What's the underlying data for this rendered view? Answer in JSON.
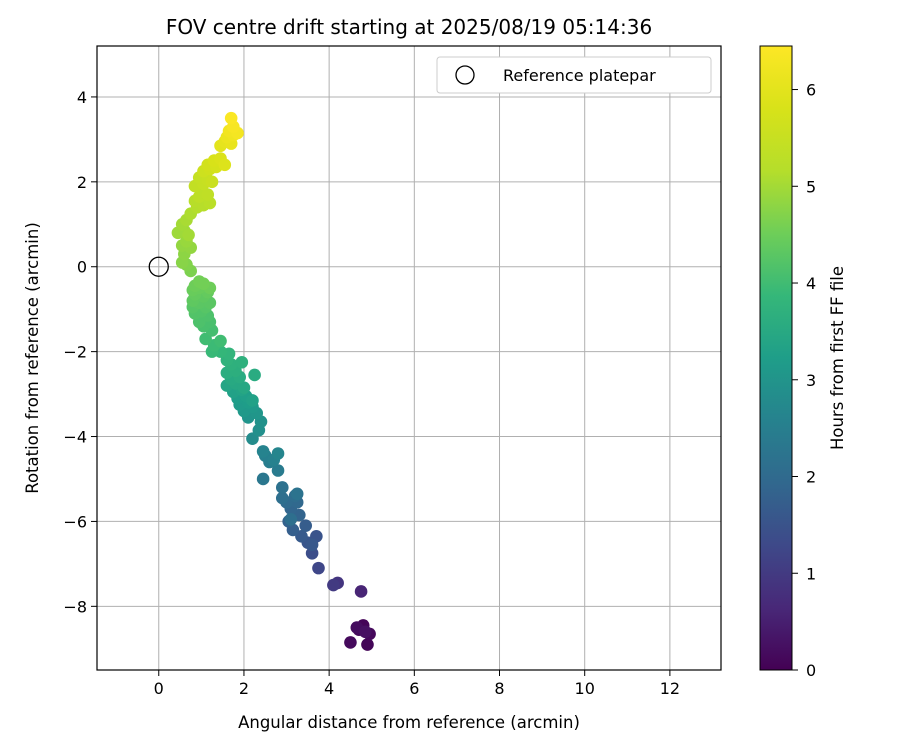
{
  "chart_data": {
    "type": "scatter",
    "title": "FOV centre drift starting at 2025/08/19 05:14:36",
    "xlabel": "Angular distance from reference (arcmin)",
    "ylabel": "Rotation from reference (arcmin)",
    "xlim": [
      -1.45,
      13.2
    ],
    "ylim": [
      -9.5,
      5.2
    ],
    "x_ticks": [
      0,
      2,
      4,
      6,
      8,
      10,
      12
    ],
    "y_ticks": [
      -8,
      -6,
      -4,
      -2,
      0,
      2,
      4
    ],
    "grid": true,
    "legend": {
      "position": "top-right",
      "entries": [
        "Reference platepar"
      ]
    },
    "reference_point": {
      "name": "Reference platepar",
      "x": 0,
      "y": 0
    },
    "colorbar": {
      "label": "Hours from first FF file",
      "range": [
        0,
        6.45
      ],
      "ticks": [
        0,
        1,
        2,
        3,
        4,
        5,
        6
      ],
      "colormap": "viridis"
    },
    "series": [
      {
        "name": "",
        "points": [
          {
            "x": 4.8,
            "y": -8.45,
            "c": 0.05
          },
          {
            "x": 4.9,
            "y": -8.9,
            "c": 0.08
          },
          {
            "x": 4.7,
            "y": -8.55,
            "c": 0.1
          },
          {
            "x": 4.95,
            "y": -8.65,
            "c": 0.12
          },
          {
            "x": 4.5,
            "y": -8.85,
            "c": 0.15
          },
          {
            "x": 4.65,
            "y": -8.5,
            "c": 0.2
          },
          {
            "x": 4.85,
            "y": -8.6,
            "c": 0.25
          },
          {
            "x": 4.75,
            "y": -7.65,
            "c": 0.6
          },
          {
            "x": 4.2,
            "y": -7.45,
            "c": 0.9
          },
          {
            "x": 4.1,
            "y": -7.5,
            "c": 1.0
          },
          {
            "x": 3.75,
            "y": -7.1,
            "c": 1.25
          },
          {
            "x": 3.6,
            "y": -6.75,
            "c": 1.4
          },
          {
            "x": 3.7,
            "y": -6.35,
            "c": 1.5
          },
          {
            "x": 3.5,
            "y": -6.5,
            "c": 1.55
          },
          {
            "x": 3.6,
            "y": -6.55,
            "c": 1.6
          },
          {
            "x": 3.35,
            "y": -6.35,
            "c": 1.65
          },
          {
            "x": 3.45,
            "y": -6.1,
            "c": 1.7
          },
          {
            "x": 3.15,
            "y": -6.2,
            "c": 1.75
          },
          {
            "x": 3.05,
            "y": -6.0,
            "c": 1.8
          },
          {
            "x": 3.3,
            "y": -5.85,
            "c": 1.85
          },
          {
            "x": 3.1,
            "y": -5.7,
            "c": 1.9
          },
          {
            "x": 3.25,
            "y": -5.55,
            "c": 1.95
          },
          {
            "x": 3.0,
            "y": -5.55,
            "c": 2.0
          },
          {
            "x": 3.2,
            "y": -5.4,
            "c": 2.05
          },
          {
            "x": 2.9,
            "y": -5.45,
            "c": 2.1
          },
          {
            "x": 3.1,
            "y": -5.95,
            "c": 2.1
          },
          {
            "x": 2.9,
            "y": -5.2,
            "c": 2.15
          },
          {
            "x": 3.25,
            "y": -5.35,
            "c": 2.2
          },
          {
            "x": 2.45,
            "y": -5.0,
            "c": 2.3
          },
          {
            "x": 2.8,
            "y": -4.8,
            "c": 2.4
          },
          {
            "x": 2.6,
            "y": -4.6,
            "c": 2.45
          },
          {
            "x": 2.5,
            "y": -4.45,
            "c": 2.5
          },
          {
            "x": 2.7,
            "y": -4.55,
            "c": 2.55
          },
          {
            "x": 2.45,
            "y": -4.35,
            "c": 2.6
          },
          {
            "x": 2.8,
            "y": -4.4,
            "c": 2.65
          },
          {
            "x": 2.2,
            "y": -4.05,
            "c": 2.8
          },
          {
            "x": 2.35,
            "y": -3.85,
            "c": 2.9
          },
          {
            "x": 2.4,
            "y": -3.65,
            "c": 2.95
          },
          {
            "x": 2.1,
            "y": -3.55,
            "c": 3.0
          },
          {
            "x": 2.3,
            "y": -3.45,
            "c": 3.05
          },
          {
            "x": 2.0,
            "y": -3.4,
            "c": 3.1
          },
          {
            "x": 2.2,
            "y": -3.3,
            "c": 3.1
          },
          {
            "x": 1.9,
            "y": -3.25,
            "c": 3.15
          },
          {
            "x": 2.1,
            "y": -3.2,
            "c": 3.2
          },
          {
            "x": 1.85,
            "y": -3.1,
            "c": 3.2
          },
          {
            "x": 2.05,
            "y": -3.05,
            "c": 3.25
          },
          {
            "x": 2.2,
            "y": -3.15,
            "c": 3.3
          },
          {
            "x": 1.75,
            "y": -2.95,
            "c": 3.3
          },
          {
            "x": 1.95,
            "y": -2.9,
            "c": 3.35
          },
          {
            "x": 1.6,
            "y": -2.8,
            "c": 3.4
          },
          {
            "x": 1.8,
            "y": -2.75,
            "c": 3.45
          },
          {
            "x": 2.0,
            "y": -2.85,
            "c": 3.45
          },
          {
            "x": 1.7,
            "y": -2.65,
            "c": 3.5
          },
          {
            "x": 1.9,
            "y": -2.6,
            "c": 3.55
          },
          {
            "x": 2.25,
            "y": -2.55,
            "c": 3.55
          },
          {
            "x": 1.6,
            "y": -2.5,
            "c": 3.6
          },
          {
            "x": 1.8,
            "y": -2.45,
            "c": 3.65
          },
          {
            "x": 1.7,
            "y": -2.3,
            "c": 3.7
          },
          {
            "x": 1.95,
            "y": -2.25,
            "c": 3.7
          },
          {
            "x": 1.6,
            "y": -2.2,
            "c": 3.75
          },
          {
            "x": 1.65,
            "y": -2.05,
            "c": 3.8
          },
          {
            "x": 1.45,
            "y": -2.0,
            "c": 3.85
          },
          {
            "x": 1.25,
            "y": -2.0,
            "c": 3.9
          },
          {
            "x": 1.3,
            "y": -1.85,
            "c": 3.95
          },
          {
            "x": 1.45,
            "y": -1.75,
            "c": 4.0
          },
          {
            "x": 1.1,
            "y": -1.7,
            "c": 4.0
          },
          {
            "x": 1.25,
            "y": -1.5,
            "c": 4.05
          },
          {
            "x": 1.05,
            "y": -1.4,
            "c": 4.1
          },
          {
            "x": 1.2,
            "y": -1.3,
            "c": 4.1
          },
          {
            "x": 0.95,
            "y": -1.3,
            "c": 4.15
          },
          {
            "x": 1.15,
            "y": -1.15,
            "c": 4.15
          },
          {
            "x": 0.85,
            "y": -1.1,
            "c": 4.2
          },
          {
            "x": 1.0,
            "y": -1.05,
            "c": 4.2
          },
          {
            "x": 1.1,
            "y": -0.95,
            "c": 4.25
          },
          {
            "x": 0.8,
            "y": -0.95,
            "c": 4.25
          },
          {
            "x": 0.95,
            "y": -0.85,
            "c": 4.3
          },
          {
            "x": 1.2,
            "y": -0.85,
            "c": 4.3
          },
          {
            "x": 0.8,
            "y": -0.8,
            "c": 4.35
          },
          {
            "x": 1.05,
            "y": -0.7,
            "c": 4.35
          },
          {
            "x": 0.85,
            "y": -0.65,
            "c": 4.4
          },
          {
            "x": 1.15,
            "y": -0.6,
            "c": 4.4
          },
          {
            "x": 0.8,
            "y": -0.55,
            "c": 4.45
          },
          {
            "x": 0.95,
            "y": -0.5,
            "c": 4.45
          },
          {
            "x": 1.2,
            "y": -0.5,
            "c": 4.5
          },
          {
            "x": 0.85,
            "y": -0.45,
            "c": 4.5
          },
          {
            "x": 1.05,
            "y": -0.4,
            "c": 4.55
          },
          {
            "x": 0.95,
            "y": -0.35,
            "c": 4.55
          },
          {
            "x": 0.75,
            "y": -0.1,
            "c": 4.65
          },
          {
            "x": 0.65,
            "y": 0.05,
            "c": 4.7
          },
          {
            "x": 0.55,
            "y": 0.1,
            "c": 4.75
          },
          {
            "x": 0.6,
            "y": 0.3,
            "c": 4.8
          },
          {
            "x": 0.55,
            "y": 0.5,
            "c": 4.85
          },
          {
            "x": 0.75,
            "y": 0.45,
            "c": 4.85
          },
          {
            "x": 0.65,
            "y": 0.6,
            "c": 4.9
          },
          {
            "x": 0.45,
            "y": 0.8,
            "c": 4.95
          },
          {
            "x": 0.6,
            "y": 0.85,
            "c": 4.95
          },
          {
            "x": 0.7,
            "y": 0.75,
            "c": 5.0
          },
          {
            "x": 0.55,
            "y": 1.0,
            "c": 5.0
          },
          {
            "x": 0.65,
            "y": 1.1,
            "c": 5.05
          },
          {
            "x": 0.75,
            "y": 1.25,
            "c": 5.1
          },
          {
            "x": 0.9,
            "y": 1.4,
            "c": 5.15
          },
          {
            "x": 1.05,
            "y": 1.45,
            "c": 5.2
          },
          {
            "x": 0.85,
            "y": 1.55,
            "c": 5.2
          },
          {
            "x": 1.2,
            "y": 1.5,
            "c": 5.25
          },
          {
            "x": 0.95,
            "y": 1.65,
            "c": 5.3
          },
          {
            "x": 1.0,
            "y": 1.75,
            "c": 5.3
          },
          {
            "x": 1.15,
            "y": 1.7,
            "c": 5.35
          },
          {
            "x": 0.85,
            "y": 1.9,
            "c": 5.4
          },
          {
            "x": 1.05,
            "y": 1.95,
            "c": 5.45
          },
          {
            "x": 0.95,
            "y": 2.1,
            "c": 5.45
          },
          {
            "x": 1.15,
            "y": 2.05,
            "c": 5.5
          },
          {
            "x": 1.25,
            "y": 2.0,
            "c": 5.55
          },
          {
            "x": 1.05,
            "y": 2.25,
            "c": 5.6
          },
          {
            "x": 1.2,
            "y": 2.3,
            "c": 5.65
          },
          {
            "x": 1.15,
            "y": 2.4,
            "c": 5.7
          },
          {
            "x": 1.35,
            "y": 2.35,
            "c": 5.75
          },
          {
            "x": 1.3,
            "y": 2.5,
            "c": 5.8
          },
          {
            "x": 1.45,
            "y": 2.55,
            "c": 5.85
          },
          {
            "x": 1.55,
            "y": 2.4,
            "c": 5.9
          },
          {
            "x": 1.45,
            "y": 2.85,
            "c": 6.0
          },
          {
            "x": 1.55,
            "y": 2.95,
            "c": 6.05
          },
          {
            "x": 1.7,
            "y": 2.9,
            "c": 6.1
          },
          {
            "x": 1.6,
            "y": 3.05,
            "c": 6.15
          },
          {
            "x": 1.75,
            "y": 3.1,
            "c": 6.2
          },
          {
            "x": 1.65,
            "y": 3.2,
            "c": 6.25
          },
          {
            "x": 1.85,
            "y": 3.15,
            "c": 6.3
          },
          {
            "x": 1.75,
            "y": 3.3,
            "c": 6.35
          },
          {
            "x": 1.7,
            "y": 3.5,
            "c": 6.4
          }
        ]
      }
    ]
  }
}
